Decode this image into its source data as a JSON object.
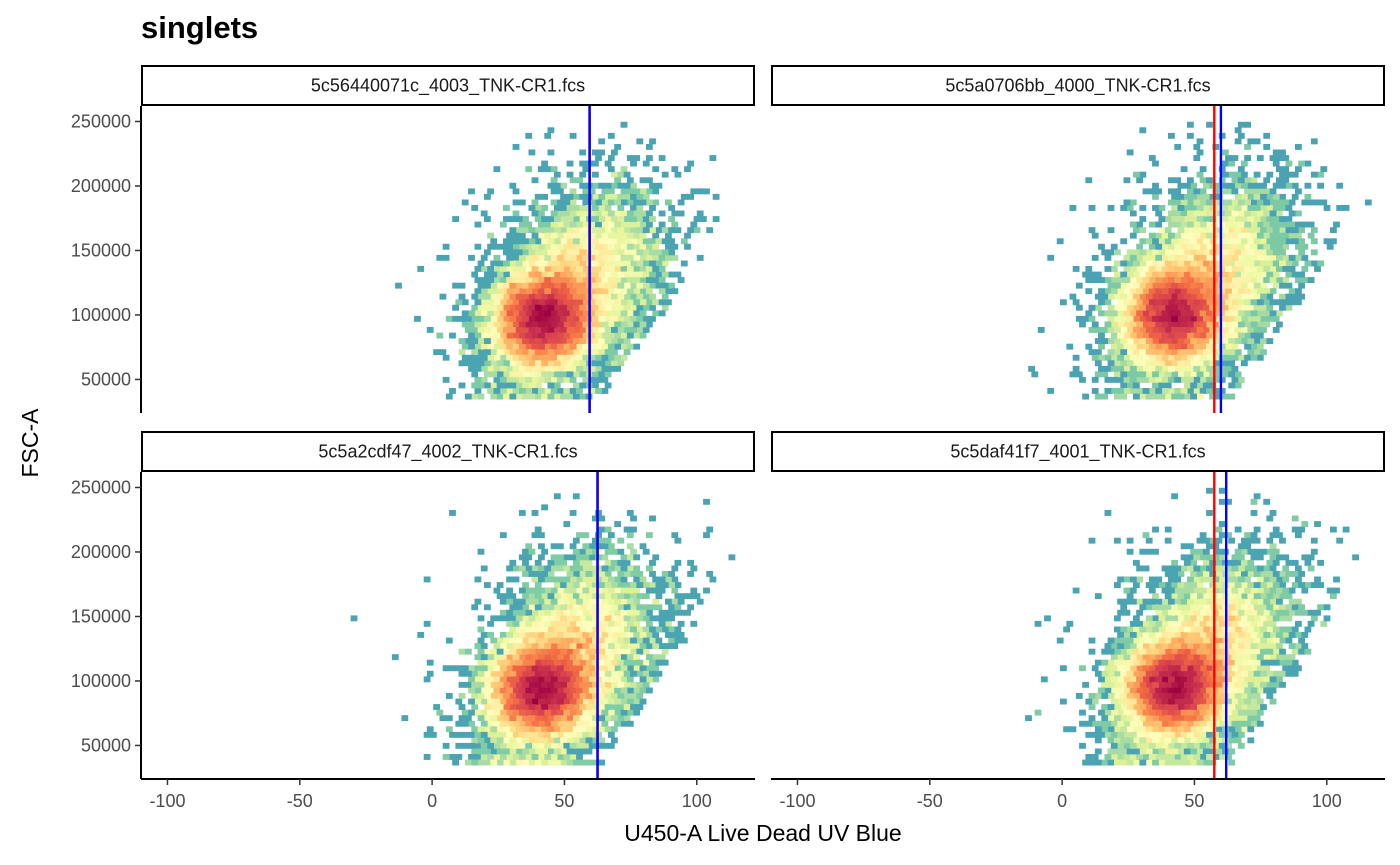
{
  "chart_data": {
    "type": "heatmap",
    "subtype": "faceted hexbin density plot",
    "title": "singlets",
    "xlabel": "U450-A Live Dead UV Blue",
    "ylabel": "FSC-A",
    "xlim": [
      -110,
      122
    ],
    "ylim": [
      24000,
      262000
    ],
    "x_ticks": [
      -100,
      -50,
      0,
      50,
      100
    ],
    "y_ticks": [
      50000,
      100000,
      150000,
      200000,
      250000
    ],
    "x_tick_labels": [
      "-100",
      "-50",
      "0",
      "50",
      "100"
    ],
    "y_tick_labels": [
      "50000",
      "100000",
      "150000",
      "200000",
      "250000"
    ],
    "grid": false,
    "legend": "none",
    "colormap": [
      "#5e4fa2",
      "#3288bd",
      "#66c2a5",
      "#abdda4",
      "#e6f598",
      "#ffffbf",
      "#fee08b",
      "#fdae61",
      "#f46d43",
      "#d53e4f",
      "#9e0142"
    ],
    "line_colors": {
      "red": "#ff0000",
      "blue": "#0000ff"
    },
    "panels": [
      {
        "name": "5c56440071c_4003_TNK-CR1.fcs",
        "density_peak": {
          "x": 42,
          "y": 97000
        },
        "vlines": [
          {
            "color": "red",
            "x": 59.5
          },
          {
            "color": "blue",
            "x": 59.5
          }
        ]
      },
      {
        "name": "5c5a0706bb_4000_TNK-CR1.fcs",
        "density_peak": {
          "x": 42,
          "y": 100000
        },
        "vlines": [
          {
            "color": "red",
            "x": 57.5
          },
          {
            "color": "blue",
            "x": 60
          }
        ]
      },
      {
        "name": "5c5a2cdf47_4002_TNK-CR1.fcs",
        "density_peak": {
          "x": 41,
          "y": 93000
        },
        "vlines": [
          {
            "color": "red",
            "x": 62.5
          },
          {
            "color": "blue",
            "x": 62.5
          }
        ]
      },
      {
        "name": "5c5daf41f7_4001_TNK-CR1.fcs",
        "density_peak": {
          "x": 42,
          "y": 95000
        },
        "vlines": [
          {
            "color": "red",
            "x": 57.5
          },
          {
            "color": "blue",
            "x": 62
          }
        ]
      }
    ]
  }
}
